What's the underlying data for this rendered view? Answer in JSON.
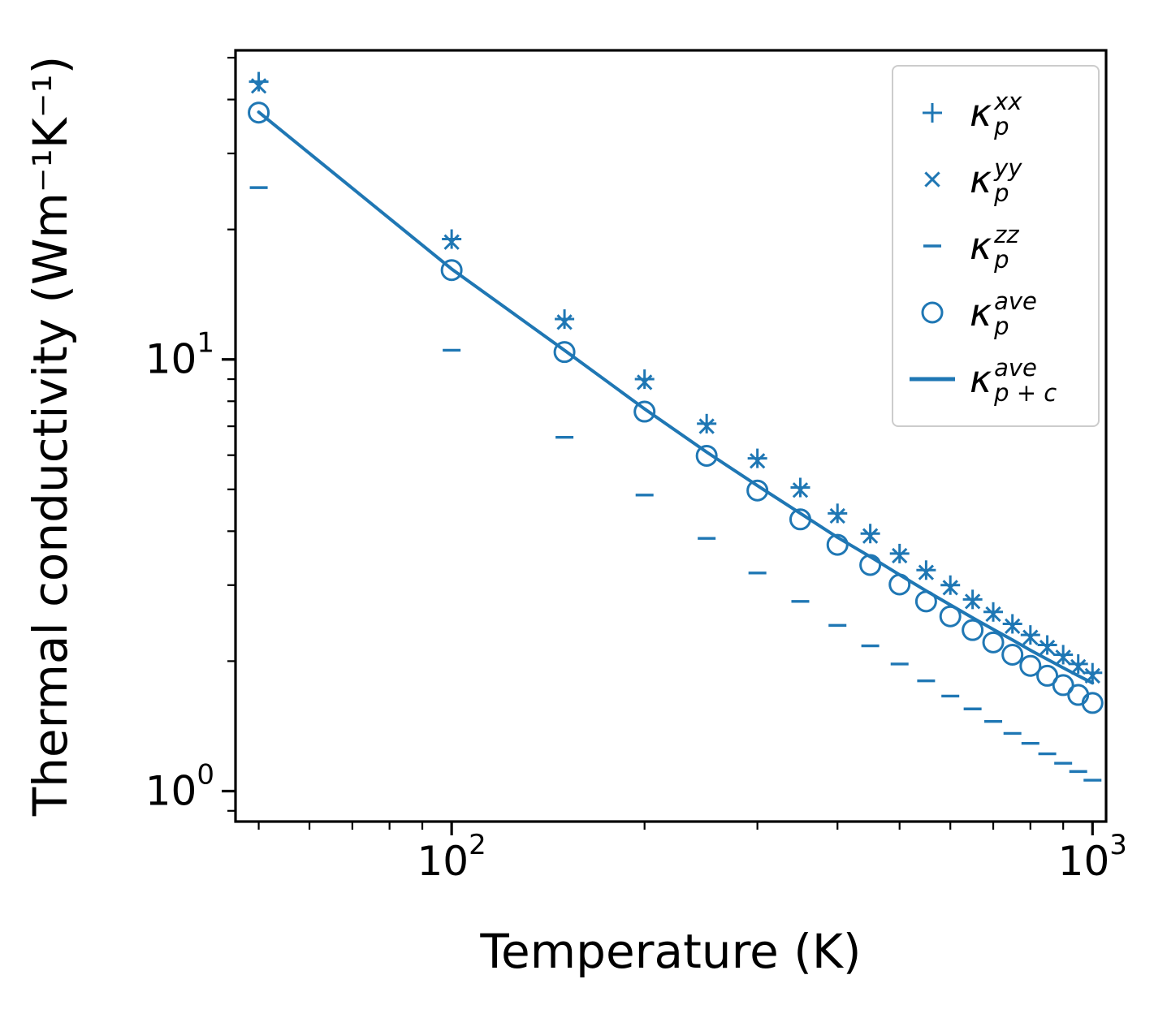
{
  "figure": {
    "background": "#ffffff",
    "accent_color": "#1f77b4",
    "spine_color": "#000000",
    "legend_border_color": "#cccccc"
  },
  "chart_data": {
    "type": "scatter",
    "title": "",
    "xlabel": "Temperature (K)",
    "ylabel": "Thermal conductivity (Wm⁻¹K⁻¹)",
    "xscale": "log",
    "yscale": "log",
    "xlim": [
      46,
      1050
    ],
    "ylim": [
      0.85,
      52
    ],
    "grid": false,
    "x": [
      50,
      100,
      150,
      200,
      250,
      300,
      350,
      400,
      450,
      500,
      550,
      600,
      650,
      700,
      750,
      800,
      850,
      900,
      950,
      1000
    ],
    "series": [
      {
        "name": "kappa_p_xx",
        "marker": "plus",
        "values": [
          44.0,
          19.0,
          12.4,
          9.0,
          7.1,
          5.9,
          5.05,
          4.4,
          3.95,
          3.55,
          3.25,
          3.0,
          2.78,
          2.6,
          2.44,
          2.3,
          2.18,
          2.07,
          1.97,
          1.88
        ]
      },
      {
        "name": "kappa_p_yy",
        "marker": "x",
        "values": [
          43.0,
          18.7,
          12.2,
          8.85,
          7.0,
          5.82,
          4.98,
          4.34,
          3.9,
          3.51,
          3.21,
          2.96,
          2.75,
          2.57,
          2.41,
          2.27,
          2.15,
          2.04,
          1.94,
          1.85
        ]
      },
      {
        "name": "kappa_p_zz",
        "marker": "hline",
        "values": [
          25.0,
          10.5,
          6.6,
          4.85,
          3.85,
          3.2,
          2.75,
          2.42,
          2.17,
          1.97,
          1.8,
          1.66,
          1.55,
          1.45,
          1.36,
          1.29,
          1.22,
          1.16,
          1.11,
          1.06
        ]
      },
      {
        "name": "kappa_p_ave",
        "marker": "circle",
        "values": [
          37.3,
          16.1,
          10.4,
          7.57,
          5.98,
          4.97,
          4.26,
          3.72,
          3.34,
          3.01,
          2.75,
          2.54,
          2.36,
          2.21,
          2.07,
          1.95,
          1.85,
          1.76,
          1.67,
          1.6
        ]
      },
      {
        "name": "kappa_p_plus_c_ave",
        "marker": "line",
        "values": [
          37.4,
          16.2,
          10.5,
          7.68,
          6.1,
          5.1,
          4.4,
          3.87,
          3.49,
          3.17,
          2.91,
          2.7,
          2.52,
          2.37,
          2.24,
          2.12,
          2.02,
          1.93,
          1.85,
          1.78
        ]
      }
    ],
    "x_ticks": [
      {
        "value": 100,
        "base": "10",
        "exp": "2"
      },
      {
        "value": 1000,
        "base": "10",
        "exp": "3"
      }
    ],
    "y_ticks": [
      {
        "value": 1,
        "base": "10",
        "exp": "0"
      },
      {
        "value": 10,
        "base": "10",
        "exp": "1"
      }
    ],
    "legend": {
      "position": "upper right",
      "entries": [
        {
          "marker": "plus",
          "label": {
            "base": "κ",
            "sup": "xx",
            "sub": "p"
          }
        },
        {
          "marker": "x",
          "label": {
            "base": "κ",
            "sup": "yy",
            "sub": "p"
          }
        },
        {
          "marker": "hline",
          "label": {
            "base": "κ",
            "sup": "zz",
            "sub": "p"
          }
        },
        {
          "marker": "circle",
          "label": {
            "base": "κ",
            "sup": "ave",
            "sub": "p"
          }
        },
        {
          "marker": "line",
          "label": {
            "base": "κ",
            "sup": "ave",
            "sub": "p + c"
          }
        }
      ]
    }
  }
}
